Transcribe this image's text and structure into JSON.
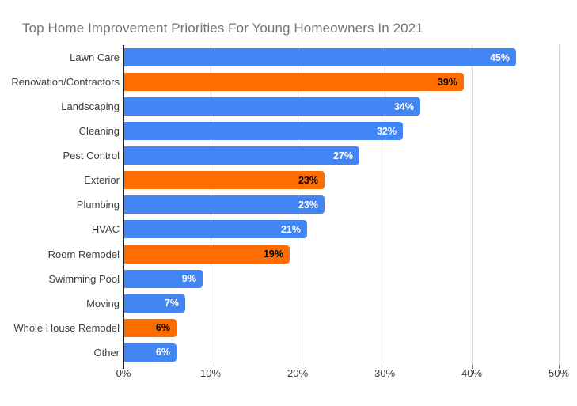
{
  "chart_data": {
    "type": "bar",
    "orientation": "horizontal",
    "title": "Top Home Improvement Priorities For Young Homeowners In 2021",
    "categories": [
      "Lawn Care",
      "Renovation/Contractors",
      "Landscaping",
      "Cleaning",
      "Pest Control",
      "Exterior",
      "Plumbing",
      "HVAC",
      "Room Remodel",
      "Swimming Pool",
      "Moving",
      "Whole House Remodel",
      "Other"
    ],
    "values": [
      45,
      39,
      34,
      32,
      27,
      23,
      23,
      21,
      19,
      9,
      7,
      6,
      6
    ],
    "value_labels": [
      "45%",
      "39%",
      "34%",
      "32%",
      "27%",
      "23%",
      "23%",
      "21%",
      "19%",
      "9%",
      "7%",
      "6%",
      "6%"
    ],
    "bar_colors": [
      "#4285F4",
      "#FF6D01",
      "#4285F4",
      "#4285F4",
      "#4285F4",
      "#FF6D01",
      "#4285F4",
      "#4285F4",
      "#FF6D01",
      "#4285F4",
      "#4285F4",
      "#FF6D01",
      "#4285F4"
    ],
    "value_label_colors": [
      "#FFFFFF",
      "#000000",
      "#FFFFFF",
      "#FFFFFF",
      "#FFFFFF",
      "#000000",
      "#FFFFFF",
      "#FFFFFF",
      "#000000",
      "#FFFFFF",
      "#FFFFFF",
      "#000000",
      "#FFFFFF"
    ],
    "xlabel": "",
    "ylabel": "",
    "xlim": [
      0,
      50
    ],
    "x_ticks": [
      "0%",
      "10%",
      "20%",
      "30%",
      "40%",
      "50%"
    ],
    "grid": true,
    "legend": "none"
  },
  "colors": {
    "series_blue": "#4285F4",
    "series_orange": "#FF6D01",
    "gridline": "#d9d9d9",
    "axis_line": "#212121",
    "title_text": "#757575",
    "axis_label_text": "#3c3c3c"
  }
}
